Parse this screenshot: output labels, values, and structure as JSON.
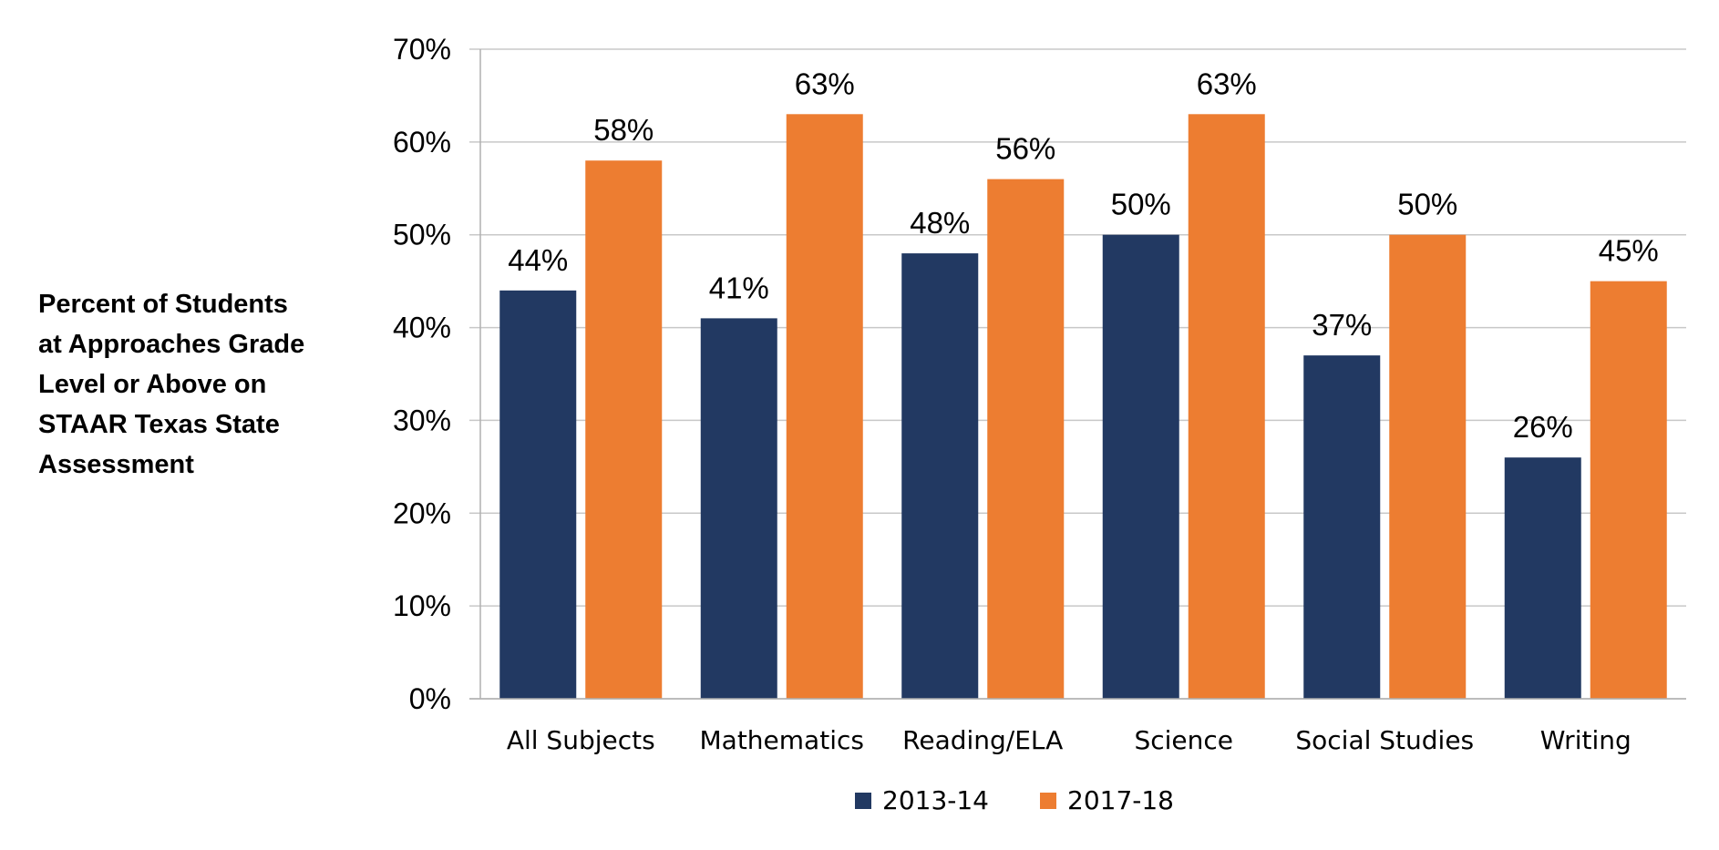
{
  "chart_data": {
    "type": "bar",
    "ylabel_lines": [
      "Percent of Students",
      "at Approaches Grade",
      "Level or Above on",
      "STAAR Texas State",
      "Assessment"
    ],
    "categories": [
      "All Subjects",
      "Mathematics",
      "Reading/ELA",
      "Science",
      "Social Studies",
      "Writing"
    ],
    "series": [
      {
        "name": "2013-14",
        "color": "#223962",
        "values": [
          44,
          41,
          48,
          50,
          37,
          26
        ],
        "labels": [
          "44%",
          "41%",
          "48%",
          "50%",
          "37%",
          "26%"
        ]
      },
      {
        "name": "2017-18",
        "color": "#ED7D31",
        "values": [
          58,
          63,
          56,
          63,
          50,
          45
        ],
        "labels": [
          "58%",
          "63%",
          "56%",
          "63%",
          "50%",
          "45%"
        ]
      }
    ],
    "yticks": [
      0,
      10,
      20,
      30,
      40,
      50,
      60,
      70
    ],
    "ytick_labels": [
      "0%",
      "10%",
      "20%",
      "30%",
      "40%",
      "50%",
      "60%",
      "70%"
    ],
    "ylim": [
      0,
      70
    ],
    "grid": true,
    "legend_position": "bottom"
  }
}
